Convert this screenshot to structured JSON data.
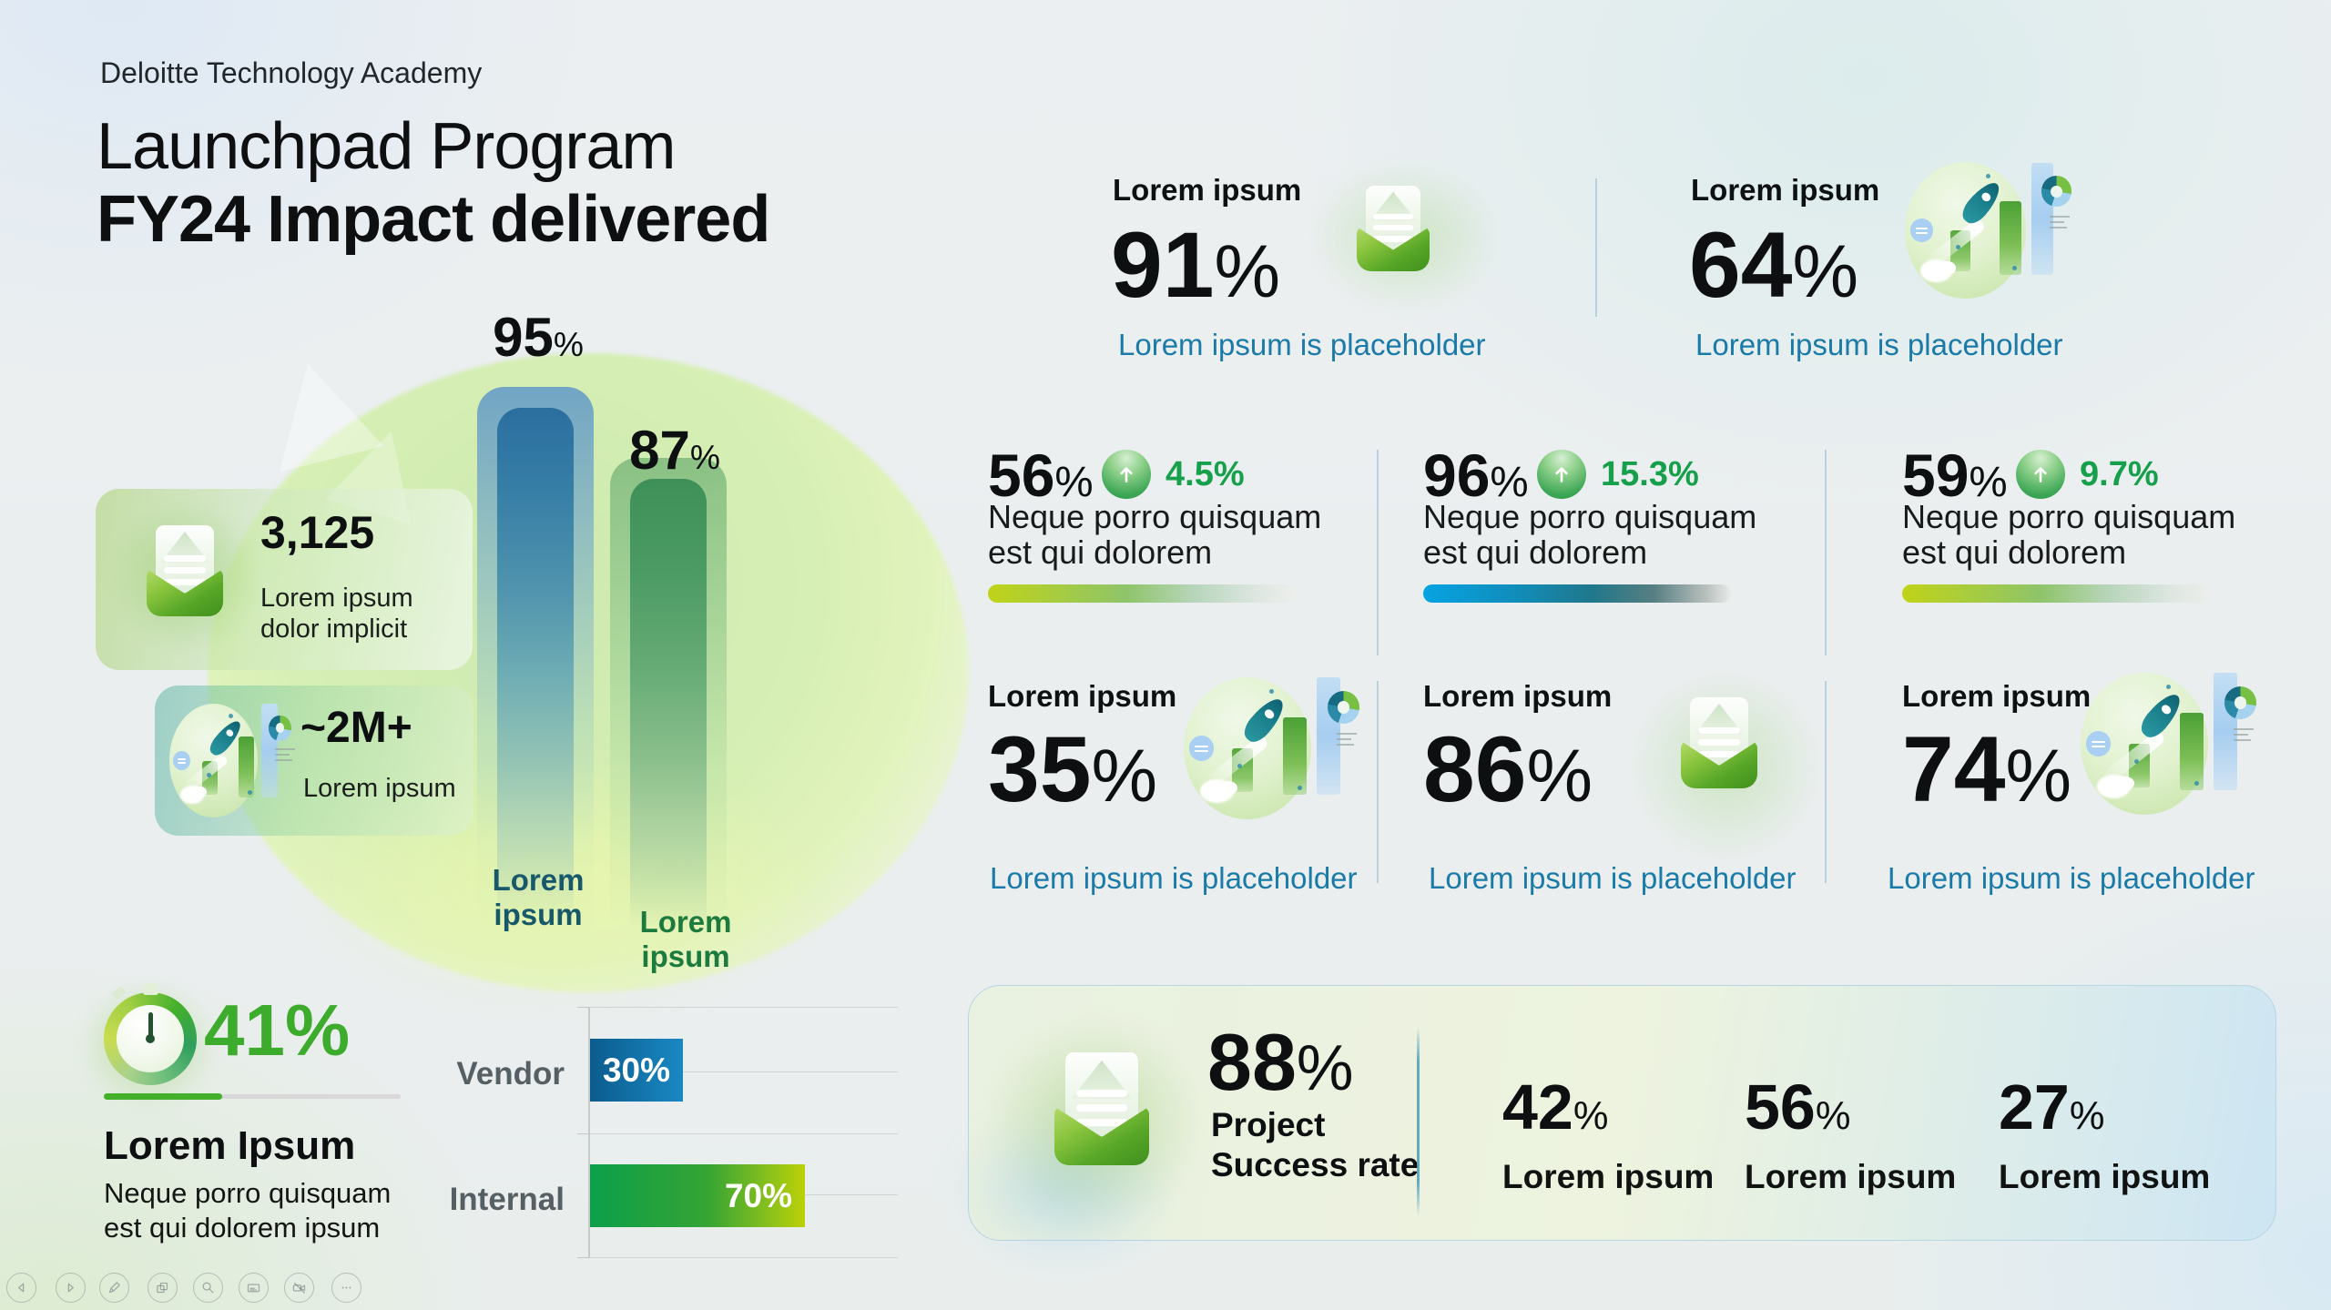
{
  "slide": {
    "eyebrow": "Deloitte Technology Academy",
    "title_line1": "Launchpad Program",
    "title_line2": "FY24 Impact delivered"
  },
  "units": {
    "percent": "%"
  },
  "left": {
    "stat_cards": [
      {
        "value": "3,125",
        "label_line1": "Lorem ipsum",
        "label_line2": "dolor implicit",
        "icon": "open-mail-icon"
      },
      {
        "value": "~2M+",
        "label_line1": "Lorem ipsum",
        "icon": "rocket-growth-illustration"
      }
    ],
    "bar_chart": {
      "bars": [
        {
          "value": "95",
          "label": "Lorem ipsum",
          "color_theme": "blue"
        },
        {
          "value": "87",
          "label": "Lorem ipsum",
          "color_theme": "green"
        }
      ]
    },
    "gauge": {
      "value": "41",
      "percent": 41,
      "title": "Lorem Ipsum",
      "desc_line1": "Neque porro quisquam",
      "desc_line2": "est qui dolorem ipsum"
    },
    "split_chart": {
      "rows": [
        {
          "label": "Vendor",
          "value_label": "30%",
          "value": 30
        },
        {
          "label": "Internal",
          "value_label": "70%",
          "value": 70
        }
      ]
    }
  },
  "right": {
    "top_stats": [
      {
        "heading": "Lorem ipsum",
        "value": "91",
        "caption": "Lorem ipsum is placeholder",
        "icon": "open-mail-icon"
      },
      {
        "heading": "Lorem ipsum",
        "value": "64",
        "caption": "Lorem ipsum is placeholder",
        "icon": "rocket-growth-illustration"
      }
    ],
    "kpis": [
      {
        "value": "56",
        "delta": "4.5%",
        "line1": "Neque porro quisquam",
        "line2": "est qui dolorem",
        "bar_theme": "lime"
      },
      {
        "value": "96",
        "delta": "15.3%",
        "line1": "Neque porro quisquam",
        "line2": "est qui dolorem",
        "bar_theme": "blue"
      },
      {
        "value": "59",
        "delta": "9.7%",
        "line1": "Neque porro quisquam",
        "line2": "est qui dolorem",
        "bar_theme": "lime"
      }
    ],
    "mid_stats": [
      {
        "heading": "Lorem ipsum",
        "value": "35",
        "caption": "Lorem ipsum is placeholder",
        "icon": "rocket-growth-illustration"
      },
      {
        "heading": "Lorem ipsum",
        "value": "86",
        "caption": "Lorem ipsum is placeholder",
        "icon": "open-mail-icon"
      },
      {
        "heading": "Lorem ipsum",
        "value": "74",
        "caption": "Lorem ipsum is placeholder",
        "icon": "rocket-growth-illustration"
      }
    ],
    "summary_card": {
      "value": "88",
      "label_line1": "Project",
      "label_line2": "Success rate",
      "icon": "open-mail-icon",
      "items": [
        {
          "value": "42",
          "label": "Lorem ipsum"
        },
        {
          "value": "56",
          "label": "Lorem ipsum"
        },
        {
          "value": "27",
          "label": "Lorem ipsum"
        }
      ]
    }
  },
  "toolbar": {
    "icons": [
      "previous-slide",
      "next-slide",
      "pen",
      "slide-sorter",
      "zoom",
      "captions",
      "camera-off",
      "more-options"
    ]
  },
  "colors": {
    "accent_green": "#43b02a",
    "accent_lime": "#c4d600",
    "accent_blue": "#1a88c4",
    "caption_blue": "#1a7aa8",
    "delta_green": "#17a04b",
    "teal_label": "#17596b",
    "green_label": "#1c7a3e"
  },
  "chart_data": [
    {
      "type": "bar",
      "title": "",
      "categories": [
        "Lorem ipsum",
        "Lorem ipsum"
      ],
      "values": [
        95,
        87
      ],
      "unit": "%",
      "ylim": [
        0,
        100
      ],
      "grid": false,
      "notes": "two vertical gradient bars with value labels 95% and 87% above"
    },
    {
      "type": "bar",
      "orientation": "horizontal",
      "categories": [
        "Vendor",
        "Internal"
      ],
      "values": [
        30,
        70
      ],
      "unit": "%",
      "xlim": [
        0,
        100
      ],
      "grid": true,
      "notes": "blue bar for Vendor, green-lime bar for Internal, white value labels inside bars"
    },
    {
      "type": "gauge",
      "title": "Lorem Ipsum",
      "value": 41,
      "unit": "%",
      "notes": "stopwatch icon with 41% progress underline"
    },
    {
      "type": "kpi",
      "items": [
        {
          "label": "Lorem ipsum",
          "value": 91,
          "unit": "%"
        },
        {
          "label": "Lorem ipsum",
          "value": 64,
          "unit": "%"
        },
        {
          "label": "Neque porro quisquam est qui dolorem",
          "value": 56,
          "unit": "%",
          "delta": 4.5
        },
        {
          "label": "Neque porro quisquam est qui dolorem",
          "value": 96,
          "unit": "%",
          "delta": 15.3
        },
        {
          "label": "Neque porro quisquam est qui dolorem",
          "value": 59,
          "unit": "%",
          "delta": 9.7
        },
        {
          "label": "Lorem ipsum",
          "value": 35,
          "unit": "%"
        },
        {
          "label": "Lorem ipsum",
          "value": 86,
          "unit": "%"
        },
        {
          "label": "Lorem ipsum",
          "value": 74,
          "unit": "%"
        },
        {
          "label": "Project Success rate",
          "value": 88,
          "unit": "%"
        },
        {
          "label": "Lorem ipsum",
          "value": 42,
          "unit": "%"
        },
        {
          "label": "Lorem ipsum",
          "value": 56,
          "unit": "%"
        },
        {
          "label": "Lorem ipsum",
          "value": 27,
          "unit": "%"
        },
        {
          "label": "3,125 Lorem ipsum dolor implicit",
          "value": 3125
        },
        {
          "label": "~2M+ Lorem ipsum",
          "value": "~2M+"
        }
      ]
    }
  ]
}
